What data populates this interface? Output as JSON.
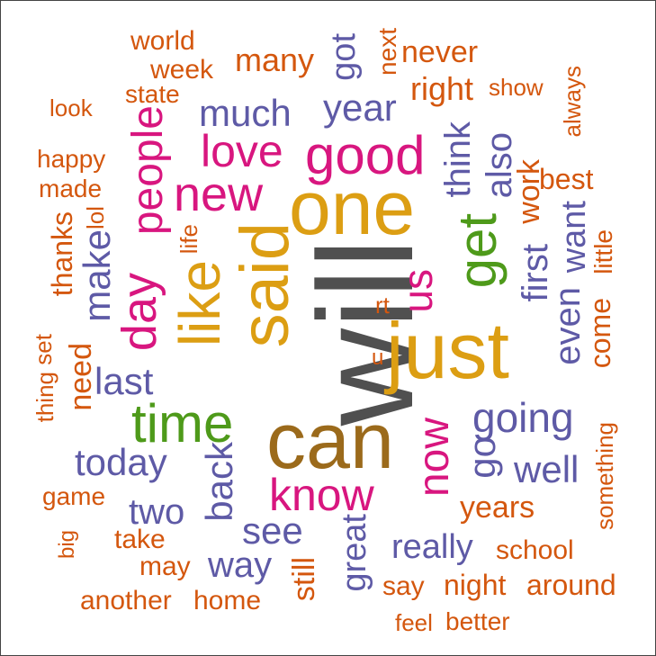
{
  "colors": {
    "orange": "#D4570E",
    "purple": "#5E5AA6",
    "pink": "#D8167F",
    "gold": "#DC9E13",
    "green": "#4E9A1A",
    "brown": "#9B6A1B",
    "gray": "#505050"
  },
  "words": [
    {
      "text": "will",
      "color": "gray",
      "weight": 10
    },
    {
      "text": "can",
      "color": "brown",
      "weight": 9
    },
    {
      "text": "just",
      "color": "gold",
      "weight": 8
    },
    {
      "text": "said",
      "color": "gold",
      "weight": 8
    },
    {
      "text": "one",
      "color": "gold",
      "weight": 8
    },
    {
      "text": "like",
      "color": "gold",
      "weight": 7
    },
    {
      "text": "get",
      "color": "green",
      "weight": 7
    },
    {
      "text": "time",
      "color": "green",
      "weight": 6
    },
    {
      "text": "good",
      "color": "pink",
      "weight": 6
    },
    {
      "text": "new",
      "color": "pink",
      "weight": 6
    },
    {
      "text": "day",
      "color": "pink",
      "weight": 6
    },
    {
      "text": "people",
      "color": "pink",
      "weight": 6
    },
    {
      "text": "love",
      "color": "pink",
      "weight": 5
    },
    {
      "text": "know",
      "color": "pink",
      "weight": 5
    },
    {
      "text": "now",
      "color": "pink",
      "weight": 5
    },
    {
      "text": "us",
      "color": "pink",
      "weight": 5
    },
    {
      "text": "going",
      "color": "purple",
      "weight": 4
    },
    {
      "text": "much",
      "color": "purple",
      "weight": 4
    },
    {
      "text": "year",
      "color": "purple",
      "weight": 4
    },
    {
      "text": "make",
      "color": "purple",
      "weight": 4
    },
    {
      "text": "last",
      "color": "purple",
      "weight": 4
    },
    {
      "text": "today",
      "color": "purple",
      "weight": 4
    },
    {
      "text": "back",
      "color": "purple",
      "weight": 4
    },
    {
      "text": "see",
      "color": "purple",
      "weight": 4
    },
    {
      "text": "go",
      "color": "purple",
      "weight": 4
    },
    {
      "text": "well",
      "color": "purple",
      "weight": 4
    },
    {
      "text": "think",
      "color": "purple",
      "weight": 4
    },
    {
      "text": "also",
      "color": "purple",
      "weight": 4
    },
    {
      "text": "first",
      "color": "purple",
      "weight": 4
    },
    {
      "text": "even",
      "color": "purple",
      "weight": 4
    },
    {
      "text": "want",
      "color": "purple",
      "weight": 4
    },
    {
      "text": "two",
      "color": "purple",
      "weight": 3
    },
    {
      "text": "way",
      "color": "purple",
      "weight": 3
    },
    {
      "text": "really",
      "color": "purple",
      "weight": 3
    },
    {
      "text": "great",
      "color": "purple",
      "weight": 3
    },
    {
      "text": "got",
      "color": "purple",
      "weight": 3
    },
    {
      "text": "many",
      "color": "orange",
      "weight": 3
    },
    {
      "text": "right",
      "color": "orange",
      "weight": 3
    },
    {
      "text": "never",
      "color": "orange",
      "weight": 3
    },
    {
      "text": "work",
      "color": "orange",
      "weight": 3
    },
    {
      "text": "best",
      "color": "orange",
      "weight": 3
    },
    {
      "text": "years",
      "color": "orange",
      "weight": 3
    },
    {
      "text": "come",
      "color": "orange",
      "weight": 3
    },
    {
      "text": "still",
      "color": "orange",
      "weight": 3
    },
    {
      "text": "need",
      "color": "orange",
      "weight": 3
    },
    {
      "text": "thanks",
      "color": "orange",
      "weight": 3
    },
    {
      "text": "world",
      "color": "orange",
      "weight": 2
    },
    {
      "text": "week",
      "color": "orange",
      "weight": 2
    },
    {
      "text": "next",
      "color": "orange",
      "weight": 2
    },
    {
      "text": "state",
      "color": "orange",
      "weight": 2
    },
    {
      "text": "show",
      "color": "orange",
      "weight": 2
    },
    {
      "text": "always",
      "color": "orange",
      "weight": 2
    },
    {
      "text": "look",
      "color": "orange",
      "weight": 2
    },
    {
      "text": "happy",
      "color": "orange",
      "weight": 2
    },
    {
      "text": "made",
      "color": "orange",
      "weight": 2
    },
    {
      "text": "lol",
      "color": "orange",
      "weight": 2
    },
    {
      "text": "life",
      "color": "orange",
      "weight": 2
    },
    {
      "text": "little",
      "color": "orange",
      "weight": 2
    },
    {
      "text": "rt",
      "color": "orange",
      "weight": 2
    },
    {
      "text": "u",
      "color": "orange",
      "weight": 2
    },
    {
      "text": "thing",
      "color": "orange",
      "weight": 2
    },
    {
      "text": "set",
      "color": "orange",
      "weight": 2
    },
    {
      "text": "game",
      "color": "orange",
      "weight": 2
    },
    {
      "text": "something",
      "color": "orange",
      "weight": 2
    },
    {
      "text": "big",
      "color": "orange",
      "weight": 2
    },
    {
      "text": "take",
      "color": "orange",
      "weight": 2
    },
    {
      "text": "may",
      "color": "orange",
      "weight": 2
    },
    {
      "text": "school",
      "color": "orange",
      "weight": 2
    },
    {
      "text": "say",
      "color": "orange",
      "weight": 2
    },
    {
      "text": "night",
      "color": "orange",
      "weight": 2
    },
    {
      "text": "around",
      "color": "orange",
      "weight": 2
    },
    {
      "text": "another",
      "color": "orange",
      "weight": 2
    },
    {
      "text": "home",
      "color": "orange",
      "weight": 2
    },
    {
      "text": "feel",
      "color": "orange",
      "weight": 2
    },
    {
      "text": "better",
      "color": "orange",
      "weight": 2
    }
  ]
}
